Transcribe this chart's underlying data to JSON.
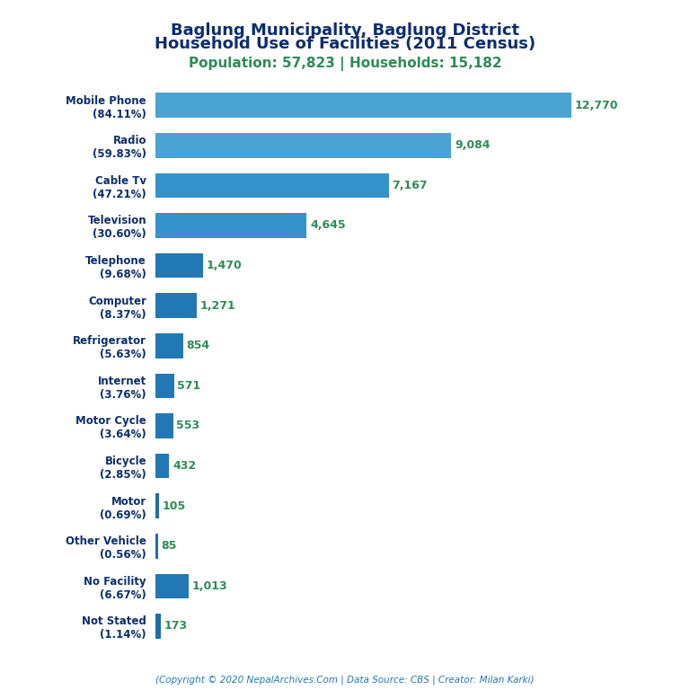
{
  "title_line1": "Baglung Municipality, Baglung District",
  "title_line2": "Household Use of Facilities (2011 Census)",
  "subtitle": "Population: 57,823 | Households: 15,182",
  "footer": "(Copyright © 2020 NepalArchives.Com | Data Source: CBS | Creator: Milan Karki)",
  "categories": [
    "Mobile Phone\n(84.11%)",
    "Radio\n(59.83%)",
    "Cable Tv\n(47.21%)",
    "Television\n(30.60%)",
    "Telephone\n(9.68%)",
    "Computer\n(8.37%)",
    "Refrigerator\n(5.63%)",
    "Internet\n(3.76%)",
    "Motor Cycle\n(3.64%)",
    "Bicycle\n(2.85%)",
    "Motor\n(0.69%)",
    "Other Vehicle\n(0.56%)",
    "No Facility\n(6.67%)",
    "Not Stated\n(1.14%)"
  ],
  "values": [
    12770,
    9084,
    7167,
    4645,
    1470,
    1271,
    854,
    571,
    553,
    432,
    105,
    85,
    1013,
    173
  ],
  "value_labels": [
    "12,770",
    "9,084",
    "7,167",
    "4,645",
    "1,470",
    "1,271",
    "854",
    "571",
    "553",
    "432",
    "105",
    "85",
    "1,013",
    "173"
  ],
  "bar_colors": [
    "#4ba3d4",
    "#4ba3d4",
    "#3393cc",
    "#3393cc",
    "#2278b5",
    "#2278b5",
    "#2278b5",
    "#2278b5",
    "#2278b5",
    "#2278b5",
    "#1e6fa8",
    "#1e6fa8",
    "#2278b5",
    "#1e6fa8"
  ],
  "title_color": "#0d2e6e",
  "subtitle_color": "#2e8b57",
  "value_color": "#2e8b57",
  "label_color": "#0d2e6e",
  "footer_color": "#2278b5",
  "background_color": "#ffffff",
  "xlim": [
    0,
    14500
  ]
}
